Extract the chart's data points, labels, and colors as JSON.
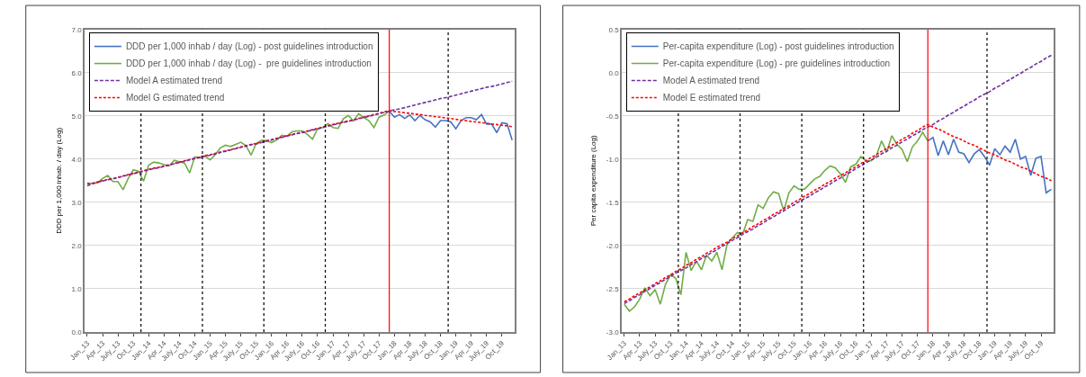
{
  "chart_data": [
    {
      "type": "line",
      "ylabel": "DDD per 1,000 inhab. / day (Log)",
      "categories": [
        "Jan_13",
        null,
        null,
        "Apr_13",
        null,
        null,
        "July_13",
        null,
        null,
        "Oct_13",
        null,
        null,
        "Jan_14",
        null,
        null,
        "Apr_14",
        null,
        null,
        "July_14",
        null,
        null,
        "Oct_14",
        null,
        null,
        "Jan_15",
        null,
        null,
        "Apr_15",
        null,
        null,
        "July_15",
        null,
        null,
        "Oct_15",
        null,
        null,
        "Jan_16",
        null,
        null,
        "Apr_16",
        null,
        null,
        "July_16",
        null,
        null,
        "Oct_16",
        null,
        null,
        "Jan_17",
        null,
        null,
        "Apr_17",
        null,
        null,
        "July_17",
        null,
        null,
        "Oct_17",
        null,
        null,
        "Jan_18",
        null,
        null,
        "Apr_18",
        null,
        null,
        "July_18",
        null,
        null,
        "Oct_18",
        null,
        null,
        "Jan_19",
        null,
        null,
        "Apr_19",
        null,
        null,
        "July_19",
        null,
        null,
        "Oct_19",
        null,
        null
      ],
      "series": [
        {
          "name": "DDD per 1,000 inhab / day (Log) - post guidelines introduction",
          "color": "#4472c4",
          "values": [
            null,
            null,
            null,
            null,
            null,
            null,
            null,
            null,
            null,
            null,
            null,
            null,
            null,
            null,
            null,
            null,
            null,
            null,
            null,
            null,
            null,
            null,
            null,
            null,
            null,
            null,
            null,
            null,
            null,
            null,
            null,
            null,
            null,
            null,
            null,
            null,
            null,
            null,
            null,
            null,
            null,
            null,
            null,
            null,
            null,
            null,
            null,
            null,
            null,
            null,
            null,
            null,
            null,
            null,
            null,
            null,
            null,
            null,
            null,
            5.11,
            4.97,
            5.03,
            4.94,
            5.02,
            4.89,
            5.01,
            4.91,
            4.86,
            4.74,
            4.89,
            4.89,
            4.86,
            4.7,
            4.89,
            4.96,
            4.96,
            4.91,
            5.03,
            4.81,
            4.81,
            4.61,
            4.84,
            4.82,
            4.44
          ]
        },
        {
          "name": "DDD per 1,000 inhab / day (Log) -  pre guidelines introduction",
          "color": "#70ad47",
          "values": [
            3.43,
            3.44,
            3.45,
            3.55,
            3.62,
            3.48,
            3.48,
            3.29,
            3.55,
            3.75,
            3.72,
            3.49,
            3.86,
            3.93,
            3.91,
            3.87,
            3.84,
            3.97,
            3.94,
            3.91,
            3.68,
            4.05,
            4.03,
            4.07,
            3.98,
            4.1,
            4.26,
            4.32,
            4.29,
            4.34,
            4.39,
            4.31,
            4.09,
            4.36,
            4.43,
            4.43,
            4.38,
            4.44,
            4.55,
            4.53,
            4.63,
            4.65,
            4.65,
            4.57,
            4.46,
            4.7,
            4.73,
            4.82,
            4.73,
            4.71,
            4.93,
            5.01,
            4.88,
            5.05,
            4.96,
            4.89,
            4.73,
            4.97,
            5.02,
            5.11,
            null,
            null,
            null,
            null,
            null,
            null,
            null,
            null,
            null,
            null,
            null,
            null,
            null,
            null,
            null,
            null,
            null,
            null,
            null,
            null,
            null,
            null,
            null,
            null
          ]
        },
        {
          "name": "Model A estimated trend",
          "color": "#7030a0",
          "line_style": "dashed",
          "values": [
            3.38,
            3.43,
            3.46,
            3.49,
            3.52,
            3.54,
            3.57,
            3.6,
            3.63,
            3.66,
            3.69,
            3.72,
            3.75,
            3.78,
            3.8,
            3.83,
            3.86,
            3.89,
            3.92,
            3.95,
            3.98,
            4.01,
            4.04,
            4.07,
            4.09,
            4.12,
            4.15,
            4.18,
            4.21,
            4.24,
            4.27,
            4.3,
            4.33,
            4.35,
            4.38,
            4.41,
            4.44,
            4.47,
            4.5,
            4.53,
            4.56,
            4.59,
            4.61,
            4.64,
            4.67,
            4.7,
            4.73,
            4.76,
            4.79,
            4.82,
            4.85,
            4.87,
            4.9,
            4.93,
            4.96,
            4.99,
            5.02,
            5.05,
            5.08,
            5.11,
            5.14,
            5.16,
            5.19,
            5.22,
            5.25,
            5.28,
            5.31,
            5.34,
            5.37,
            5.4,
            5.42,
            5.45,
            5.48,
            5.51,
            5.54,
            5.57,
            5.6,
            5.63,
            5.66,
            5.68,
            5.71,
            5.74,
            5.77,
            5.8
          ]
        },
        {
          "name": "Model G estimated trend",
          "color": "#ff0000",
          "line_style": "dotted",
          "values": [
            3.44,
            3.44,
            3.47,
            3.5,
            3.53,
            3.55,
            3.58,
            3.61,
            3.64,
            3.67,
            3.7,
            3.73,
            3.76,
            3.79,
            3.81,
            3.84,
            3.87,
            3.9,
            3.93,
            3.96,
            3.99,
            4.02,
            4.05,
            4.08,
            4.1,
            4.13,
            4.16,
            4.19,
            4.22,
            4.25,
            4.28,
            4.31,
            4.34,
            4.36,
            4.39,
            4.42,
            4.45,
            4.48,
            4.51,
            4.54,
            4.57,
            4.6,
            4.62,
            4.65,
            4.68,
            4.71,
            4.74,
            4.77,
            4.8,
            4.83,
            4.86,
            4.88,
            4.91,
            4.94,
            4.97,
            5.0,
            5.03,
            5.06,
            5.09,
            5.12,
            5.1,
            5.09,
            5.07,
            5.06,
            5.04,
            5.03,
            5.01,
            5.0,
            4.98,
            4.97,
            4.95,
            4.94,
            4.92,
            4.9,
            4.89,
            4.87,
            4.86,
            4.84,
            4.83,
            4.81,
            4.8,
            4.78,
            4.77,
            4.75
          ]
        }
      ],
      "ylim": [
        0,
        7
      ],
      "yticks": [
        {
          "value": 0,
          "label": "0.0"
        },
        {
          "value": 1,
          "label": "1.0"
        },
        {
          "value": 2,
          "label": "2.0"
        },
        {
          "value": 3,
          "label": "3.0"
        },
        {
          "value": 4,
          "label": "4.0"
        },
        {
          "value": 5,
          "label": "5.0"
        },
        {
          "value": 6,
          "label": "6.0"
        },
        {
          "value": 7,
          "label": "7.0"
        }
      ],
      "grid": "y",
      "legend": "top left",
      "marker": "none"
    },
    {
      "type": "line",
      "ylabel": "Per capita expenditure (Log)",
      "categories": [
        "Jan_13",
        null,
        null,
        "Apr_13",
        null,
        null,
        "July_13",
        null,
        null,
        "Oct_13",
        null,
        null,
        "Jan_14",
        null,
        null,
        "Apr_14",
        null,
        null,
        "July_14",
        null,
        null,
        "Oct_14",
        null,
        null,
        "Jan_15",
        null,
        null,
        "Apr_15",
        null,
        null,
        "July_15",
        null,
        null,
        "Oct_15",
        null,
        null,
        "Jan_16",
        null,
        null,
        "Apr_16",
        null,
        null,
        "July_16",
        null,
        null,
        "Oct_16",
        null,
        null,
        "Jan_17",
        null,
        null,
        "Apr_17",
        null,
        null,
        "July_17",
        null,
        null,
        "Oct_17",
        null,
        null,
        "Jan_18",
        null,
        null,
        "Apr_18",
        null,
        null,
        "July_18",
        null,
        null,
        "Oct_18",
        null,
        null,
        "Jan_19",
        null,
        null,
        "Apr_19",
        null,
        null,
        "July_19",
        null,
        null,
        "Oct_19",
        null,
        null
      ],
      "series": [
        {
          "name": "Per-capita expenditure (Log) - post guidelines introduction",
          "color": "#4472c4",
          "values": [
            null,
            null,
            null,
            null,
            null,
            null,
            null,
            null,
            null,
            null,
            null,
            null,
            null,
            null,
            null,
            null,
            null,
            null,
            null,
            null,
            null,
            null,
            null,
            null,
            null,
            null,
            null,
            null,
            null,
            null,
            null,
            null,
            null,
            null,
            null,
            null,
            null,
            null,
            null,
            null,
            null,
            null,
            null,
            null,
            null,
            null,
            null,
            null,
            null,
            null,
            null,
            null,
            null,
            null,
            null,
            null,
            null,
            null,
            null,
            -0.79,
            -0.75,
            -0.96,
            -0.79,
            -0.95,
            -0.77,
            -0.92,
            -0.94,
            -1.04,
            -0.94,
            -0.89,
            -0.97,
            -1.07,
            -0.88,
            -0.95,
            -0.85,
            -0.92,
            -0.77,
            -1.0,
            -0.97,
            -1.19,
            -0.99,
            -0.97,
            -1.39,
            -1.35
          ]
        },
        {
          "name": "Per-capita expenditure (Log) - pre guidelines introduction",
          "color": "#70ad47",
          "values": [
            -2.68,
            -2.76,
            -2.71,
            -2.62,
            -2.49,
            -2.58,
            -2.51,
            -2.68,
            -2.45,
            -2.34,
            -2.38,
            -2.57,
            -2.08,
            -2.29,
            -2.18,
            -2.28,
            -2.11,
            -2.18,
            -2.08,
            -2.28,
            -1.98,
            -1.91,
            -1.85,
            -1.87,
            -1.7,
            -1.72,
            -1.53,
            -1.57,
            -1.45,
            -1.38,
            -1.4,
            -1.6,
            -1.39,
            -1.31,
            -1.35,
            -1.35,
            -1.29,
            -1.23,
            -1.2,
            -1.13,
            -1.08,
            -1.1,
            -1.17,
            -1.27,
            -1.09,
            -1.06,
            -0.97,
            -1.02,
            -1.02,
            -0.96,
            -0.79,
            -0.92,
            -0.73,
            -0.83,
            -0.89,
            -1.03,
            -0.86,
            -0.79,
            -0.69,
            -0.79,
            null,
            null,
            null,
            null,
            null,
            null,
            null,
            null,
            null,
            null,
            null,
            null,
            null,
            null,
            null,
            null,
            null,
            null,
            null,
            null,
            null,
            null,
            null,
            null
          ]
        },
        {
          "name": "Model A estimated trend",
          "color": "#7030a0",
          "line_style": "dashed",
          "values": [
            -2.67,
            -2.64,
            -2.6,
            -2.57,
            -2.53,
            -2.5,
            -2.46,
            -2.43,
            -2.39,
            -2.36,
            -2.32,
            -2.29,
            -2.26,
            -2.22,
            -2.19,
            -2.15,
            -2.12,
            -2.08,
            -2.05,
            -2.01,
            -1.98,
            -1.94,
            -1.91,
            -1.87,
            -1.84,
            -1.81,
            -1.77,
            -1.74,
            -1.7,
            -1.67,
            -1.63,
            -1.6,
            -1.56,
            -1.53,
            -1.49,
            -1.46,
            -1.43,
            -1.39,
            -1.36,
            -1.32,
            -1.29,
            -1.25,
            -1.22,
            -1.18,
            -1.15,
            -1.11,
            -1.08,
            -1.04,
            -1.01,
            -0.98,
            -0.94,
            -0.91,
            -0.87,
            -0.84,
            -0.8,
            -0.77,
            -0.73,
            -0.7,
            -0.66,
            -0.63,
            -0.6,
            -0.56,
            -0.53,
            -0.49,
            -0.46,
            -0.42,
            -0.39,
            -0.35,
            -0.32,
            -0.28,
            -0.25,
            -0.22,
            -0.18,
            -0.15,
            -0.11,
            -0.08,
            -0.04,
            -0.01,
            0.03,
            0.06,
            0.1,
            0.13,
            0.17,
            0.2
          ]
        },
        {
          "name": "Model E estimated trend",
          "color": "#ff0000",
          "line_style": "dotted",
          "values": [
            -2.65,
            -2.62,
            -2.58,
            -2.55,
            -2.51,
            -2.48,
            -2.44,
            -2.41,
            -2.37,
            -2.34,
            -2.3,
            -2.27,
            -2.23,
            -2.2,
            -2.16,
            -2.13,
            -2.09,
            -2.06,
            -2.02,
            -1.99,
            -1.96,
            -1.92,
            -1.89,
            -1.85,
            -1.82,
            -1.78,
            -1.75,
            -1.71,
            -1.68,
            -1.64,
            -1.61,
            -1.57,
            -1.54,
            -1.5,
            -1.47,
            -1.43,
            -1.4,
            -1.36,
            -1.33,
            -1.29,
            -1.26,
            -1.22,
            -1.19,
            -1.16,
            -1.12,
            -1.09,
            -1.05,
            -1.02,
            -0.98,
            -0.95,
            -0.91,
            -0.88,
            -0.84,
            -0.81,
            -0.77,
            -0.74,
            -0.7,
            -0.67,
            -0.63,
            -0.6,
            -0.63,
            -0.65,
            -0.68,
            -0.71,
            -0.74,
            -0.76,
            -0.79,
            -0.82,
            -0.84,
            -0.87,
            -0.9,
            -0.93,
            -0.95,
            -0.98,
            -1.01,
            -1.03,
            -1.06,
            -1.09,
            -1.11,
            -1.14,
            -1.17,
            -1.2,
            -1.22,
            -1.25
          ]
        }
      ],
      "ylim": [
        -3,
        0.5
      ],
      "yticks": [
        {
          "value": -3,
          "label": "-3.0"
        },
        {
          "value": -2.5,
          "label": "-2.5"
        },
        {
          "value": -2,
          "label": "-2.0"
        },
        {
          "value": -1.5,
          "label": "-1.5"
        },
        {
          "value": -1,
          "label": "-1.0"
        },
        {
          "value": -0.5,
          "label": "-0.5"
        },
        {
          "value": 0,
          "label": "0.0"
        },
        0.5
      ],
      "grid": "y",
      "legend": "top left",
      "marker": "none"
    }
  ]
}
